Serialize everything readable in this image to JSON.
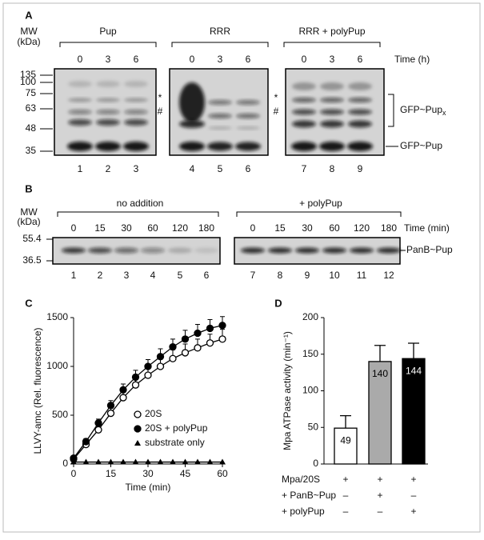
{
  "panel_a": {
    "label": "A",
    "mw_label": "MW",
    "mw_unit": "(kDa)",
    "groups": [
      {
        "name": "Pup",
        "times": [
          0,
          3,
          6
        ]
      },
      {
        "name": "RRR",
        "times": [
          0,
          3,
          6
        ]
      },
      {
        "name": "RRR + polyPup",
        "times": [
          0,
          3,
          6
        ]
      }
    ],
    "time_label": "Time (h)",
    "markers": [
      135,
      100,
      75,
      63,
      48,
      35
    ],
    "symbols": [
      "*",
      "#"
    ],
    "band_labels": [
      {
        "text": "GFP~Pup",
        "subscript": "x"
      },
      {
        "text": "GFP~Pup"
      }
    ],
    "lanes": [
      1,
      2,
      3,
      4,
      5,
      6,
      7,
      8,
      9
    ]
  },
  "panel_b": {
    "label": "B",
    "mw_label": "MW",
    "mw_unit": "(kDa)",
    "groups": [
      {
        "name": "no addition",
        "times": [
          0,
          15,
          30,
          60,
          120,
          180
        ]
      },
      {
        "name": "+ polyPup",
        "times": [
          0,
          15,
          30,
          60,
          120,
          180
        ]
      }
    ],
    "time_label": "Time (min)",
    "markers": [
      55.4,
      36.5
    ],
    "band_label": "PanB~Pup",
    "lanes": [
      1,
      2,
      3,
      4,
      5,
      6,
      7,
      8,
      9,
      10,
      11,
      12
    ]
  },
  "chart_data": [
    {
      "type": "line",
      "panel": "C",
      "xlabel": "Time (min)",
      "ylabel": "LLVY-amc (Rel. fluorescence)",
      "x": [
        0,
        5,
        10,
        15,
        20,
        25,
        30,
        35,
        40,
        45,
        50,
        55,
        60
      ],
      "xlim": [
        0,
        60
      ],
      "xticks": [
        0,
        15,
        30,
        45,
        60
      ],
      "ylim": [
        0,
        1500
      ],
      "yticks": [
        0,
        500,
        1000,
        1500
      ],
      "series": [
        {
          "name": "20S",
          "color": "#000000",
          "marker": "open-circle",
          "values": [
            50,
            200,
            350,
            520,
            680,
            810,
            910,
            1000,
            1080,
            1140,
            1190,
            1240,
            1280
          ],
          "errors": [
            10,
            30,
            40,
            50,
            60,
            70,
            80,
            80,
            90,
            90,
            90,
            90,
            100
          ]
        },
        {
          "name": "20S + polyPup",
          "color": "#000000",
          "marker": "filled-circle",
          "values": [
            60,
            230,
            420,
            600,
            760,
            890,
            1000,
            1100,
            1200,
            1280,
            1340,
            1390,
            1420
          ],
          "errors": [
            10,
            30,
            40,
            50,
            60,
            70,
            70,
            80,
            80,
            90,
            90,
            90,
            90
          ]
        },
        {
          "name": "substrate only",
          "color": "#000000",
          "marker": "triangle",
          "values": [
            20,
            20,
            20,
            20,
            20,
            20,
            20,
            20,
            20,
            20,
            20,
            20,
            20
          ],
          "errors": [
            0,
            0,
            0,
            0,
            0,
            0,
            0,
            0,
            0,
            0,
            0,
            0,
            0
          ]
        }
      ]
    },
    {
      "type": "bar",
      "panel": "D",
      "ylabel": "Mpa ATPase activity (min⁻¹)",
      "ylim": [
        0,
        200
      ],
      "yticks": [
        0,
        50,
        100,
        150,
        200
      ],
      "values": [
        49,
        140,
        144
      ],
      "errors": [
        17,
        22,
        21
      ],
      "colors": [
        "#ffffff",
        "#aaaaaa",
        "#000000"
      ],
      "label_colors": [
        "#000000",
        "#000000",
        "#ffffff"
      ],
      "conditions": [
        {
          "label": "Mpa/20S",
          "signs": [
            "+",
            "+",
            "+"
          ]
        },
        {
          "label": "+ PanB~Pup",
          "signs": [
            "–",
            "+",
            "–"
          ]
        },
        {
          "label": "+ polyPup",
          "signs": [
            "–",
            "–",
            "+"
          ]
        }
      ]
    }
  ]
}
